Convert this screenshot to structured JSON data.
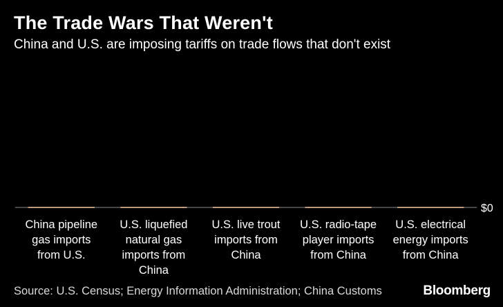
{
  "chart_data": {
    "type": "bar",
    "title": "The Trade Wars That Weren't",
    "subtitle": "China and U.S. are imposing tariffs on trade flows that don't exist",
    "categories": [
      "China pipeline gas imports from U.S.",
      "U.S. liquefied natural gas imports from China",
      "U.S. live trout imports from China",
      "U.S. radio-tape player imports from China",
      "U.S. electrical energy imports from China"
    ],
    "category_lines": [
      [
        "China pipeline",
        "gas imports",
        "from U.S."
      ],
      [
        "U.S. liquefied",
        "natural gas",
        "imports from",
        "China"
      ],
      [
        "U.S. live trout",
        "imports from",
        "China"
      ],
      [
        "U.S. radio-tape",
        "player imports",
        "from China"
      ],
      [
        "U.S. electrical",
        "energy imports",
        "from China"
      ]
    ],
    "values": [
      0,
      0,
      0,
      0,
      0
    ],
    "y_tick_labels": [
      "$0"
    ],
    "ylim": [
      0,
      1
    ],
    "xlabel": "",
    "ylabel": "",
    "grid": false,
    "legend": "none",
    "source": "Source: U.S. Census; Energy Information Administration; China Customs",
    "brand": "Bloomberg",
    "colors": {
      "background": "#000000",
      "bar": "#f0a96d",
      "axis": "#8c8c8c",
      "text": "#ffffff"
    }
  }
}
